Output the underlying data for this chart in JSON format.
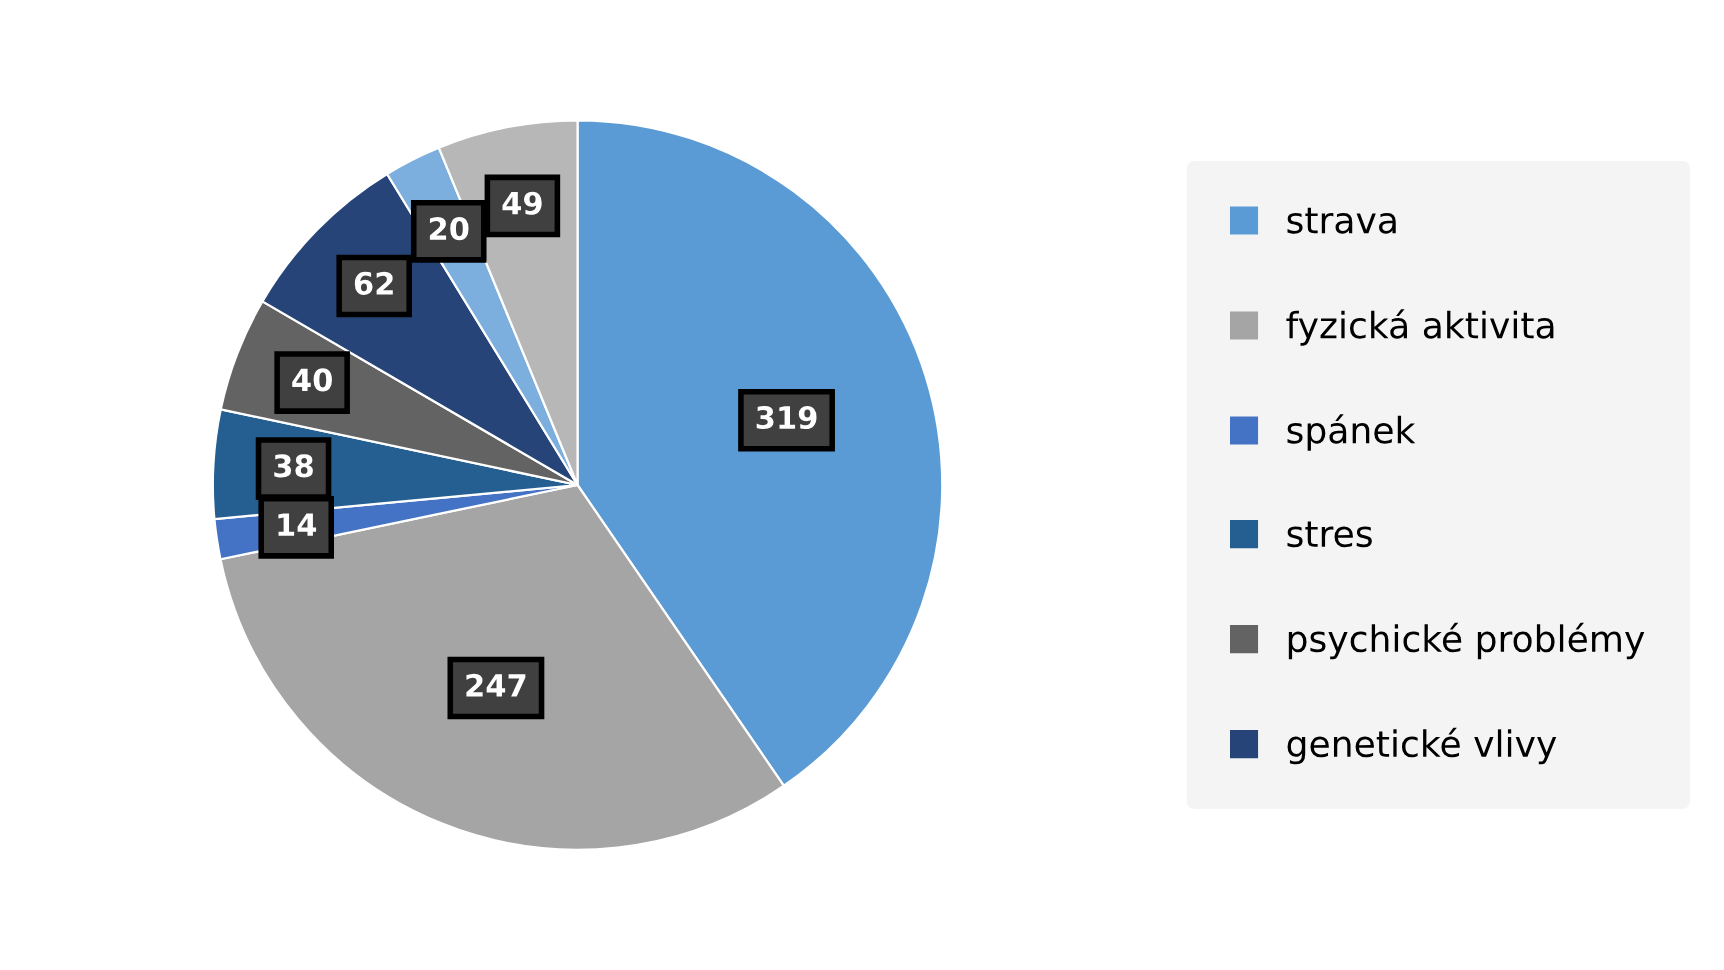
{
  "chart_data": {
    "type": "pie",
    "categories": [
      "strava",
      "fyzická aktivita",
      "spánek",
      "stres",
      "psychické problémy",
      "genetické vlivy",
      null,
      null
    ],
    "values": [
      319,
      247,
      14,
      38,
      40,
      62,
      20,
      49
    ],
    "colors": [
      "#5b9bd5",
      "#a5a5a5",
      "#4472c4",
      "#255e91",
      "#636363",
      "#264478",
      "#7cafdd",
      "#b7b7b7"
    ],
    "data_labels": true,
    "legend": "right"
  }
}
